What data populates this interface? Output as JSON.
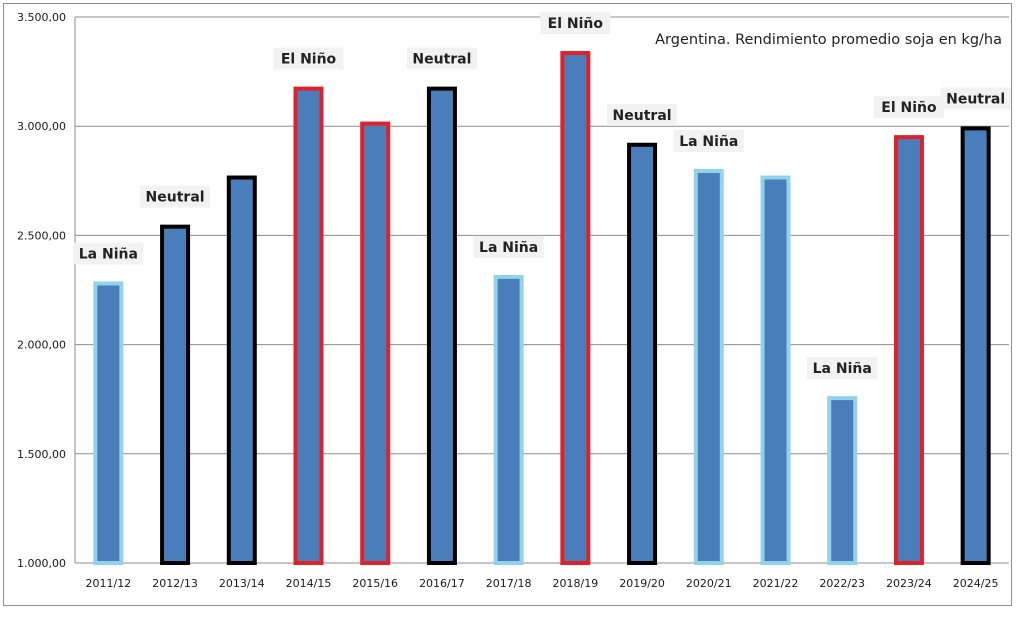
{
  "chart_data": {
    "type": "bar",
    "title": "Argentina. Rendimiento promedio soja en kg/ha",
    "xlabel": "",
    "ylabel": "",
    "ylim": [
      1000,
      3500
    ],
    "yticks": [
      "1.000,00",
      "1.500,00",
      "2.000,00",
      "2.500,00",
      "3.000,00",
      "3.500,00"
    ],
    "ytick_values": [
      1000,
      1500,
      2000,
      2500,
      3000,
      3500
    ],
    "grid": true,
    "categories": [
      "2011/12",
      "2012/13",
      "2013/14",
      "2014/15",
      "2015/16",
      "2016/17",
      "2017/18",
      "2018/19",
      "2019/20",
      "2020/21",
      "2021/22",
      "2022/23",
      "2023/24",
      "2024/25"
    ],
    "values": [
      2280,
      2540,
      2765,
      3172,
      3012,
      3172,
      2310,
      3335,
      2915,
      2795,
      2765,
      1755,
      2950,
      2990
    ],
    "annotations": [
      "La Niña",
      "Neutral",
      "",
      "El Niño",
      "",
      "Neutral",
      "La Niña",
      "El Niño",
      "Neutral",
      "La Niña",
      "",
      "La Niña",
      "El Niño",
      "Neutral"
    ],
    "phases": [
      "La Niña",
      "Neutral",
      "Neutral",
      "El Niño",
      "El Niño",
      "Neutral",
      "La Niña",
      "El Niño",
      "Neutral",
      "La Niña",
      "La Niña",
      "La Niña",
      "El Niño",
      "Neutral"
    ],
    "colors": {
      "bar_fill": "#4a7ebb",
      "La Niña": "#93d3ea",
      "Neutral": "#000000",
      "El Niño": "#e0202a",
      "grid": "#8c8c8c",
      "label_bg": "#f2f2f2"
    }
  }
}
